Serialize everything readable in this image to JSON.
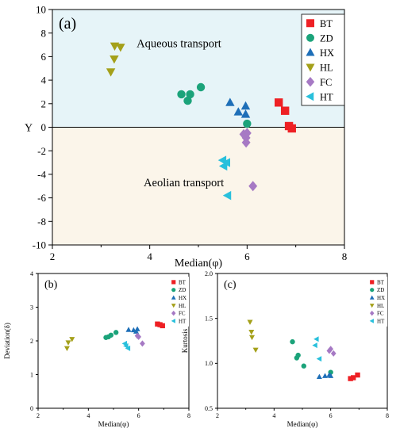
{
  "chart_data": [
    {
      "panel": "(a)",
      "type": "scatter",
      "xlabel": "Median(φ)",
      "ylabel": "Y",
      "xlim": [
        2,
        8
      ],
      "ylim": [
        -10,
        10
      ],
      "xticks": [
        "2",
        "4",
        "6",
        "8"
      ],
      "yticks": [
        "10",
        "8",
        "6",
        "4",
        "2",
        "0",
        "-2",
        "-4",
        "-6",
        "-8",
        "-10"
      ],
      "background_regions": [
        {
          "label": "Aqueous transport",
          "y_range": [
            0,
            10
          ],
          "color": "#e6f4f8",
          "label_at": [
            4.6,
            6.8
          ]
        },
        {
          "label": "Aeolian transport",
          "y_range": [
            -10,
            0
          ],
          "color": "#fbf5ea",
          "label_at": [
            4.7,
            -5.0
          ]
        }
      ],
      "reference_line_y": 0,
      "legend_position": "top-right",
      "series": [
        {
          "name": "BT",
          "marker": "square",
          "color": "#ee2024",
          "points": [
            [
              6.65,
              2.1
            ],
            [
              6.78,
              1.4
            ],
            [
              6.86,
              0.1
            ],
            [
              6.92,
              -0.1
            ]
          ]
        },
        {
          "name": "ZD",
          "marker": "circle",
          "color": "#1ba37a",
          "points": [
            [
              4.65,
              2.8
            ],
            [
              4.78,
              2.25
            ],
            [
              4.83,
              2.8
            ],
            [
              5.05,
              3.4
            ],
            [
              6.0,
              0.3
            ]
          ]
        },
        {
          "name": "HX",
          "marker": "triangle-up",
          "color": "#1e6fb8",
          "points": [
            [
              5.65,
              2.1
            ],
            [
              5.82,
              1.3
            ],
            [
              5.97,
              1.8
            ],
            [
              5.97,
              1.1
            ]
          ]
        },
        {
          "name": "HL",
          "marker": "triangle-down",
          "color": "#a4a01a",
          "points": [
            [
              3.2,
              4.7
            ],
            [
              3.27,
              5.8
            ],
            [
              3.28,
              6.9
            ],
            [
              3.4,
              6.8
            ]
          ]
        },
        {
          "name": "FC",
          "marker": "diamond",
          "color": "#a679c4",
          "points": [
            [
              5.93,
              -0.6
            ],
            [
              5.98,
              -0.9
            ],
            [
              5.98,
              -1.3
            ],
            [
              6.0,
              -0.5
            ],
            [
              6.12,
              -5.0
            ]
          ]
        },
        {
          "name": "HT",
          "marker": "triangle-left",
          "color": "#29c0dc",
          "points": [
            [
              5.5,
              -2.8
            ],
            [
              5.52,
              -3.3
            ],
            [
              5.58,
              -3.0
            ],
            [
              5.6,
              -5.8
            ]
          ]
        }
      ]
    },
    {
      "panel": "(b)",
      "type": "scatter",
      "xlabel": "Median(φ)",
      "ylabel": "Deviation(δ)",
      "xlim": [
        2,
        8
      ],
      "ylim": [
        0,
        4
      ],
      "xticks": [
        "2",
        "4",
        "6",
        "8"
      ],
      "yticks": [
        "0",
        "1",
        "2",
        "3",
        "4"
      ],
      "legend_position": "top-right",
      "series": [
        {
          "name": "BT",
          "marker": "square",
          "color": "#ee2024",
          "points": [
            [
              6.75,
              2.5
            ],
            [
              6.85,
              2.48
            ],
            [
              6.95,
              2.45
            ]
          ]
        },
        {
          "name": "ZD",
          "marker": "circle",
          "color": "#1ba37a",
          "points": [
            [
              4.7,
              2.1
            ],
            [
              4.8,
              2.12
            ],
            [
              4.9,
              2.17
            ],
            [
              5.1,
              2.25
            ]
          ]
        },
        {
          "name": "HX",
          "marker": "triangle-up",
          "color": "#1e6fb8",
          "points": [
            [
              5.6,
              2.33
            ],
            [
              5.8,
              2.32
            ],
            [
              5.9,
              2.28
            ],
            [
              5.95,
              2.35
            ]
          ]
        },
        {
          "name": "HL",
          "marker": "triangle-down",
          "color": "#a4a01a",
          "points": [
            [
              3.15,
              1.78
            ],
            [
              3.2,
              1.95
            ],
            [
              3.35,
              2.05
            ]
          ]
        },
        {
          "name": "FC",
          "marker": "diamond",
          "color": "#a679c4",
          "points": [
            [
              5.95,
              2.15
            ],
            [
              6.0,
              2.12
            ],
            [
              6.15,
              1.92
            ]
          ]
        },
        {
          "name": "HT",
          "marker": "triangle-left",
          "color": "#29c0dc",
          "points": [
            [
              5.45,
              1.92
            ],
            [
              5.5,
              1.85
            ],
            [
              5.58,
              1.78
            ]
          ]
        }
      ]
    },
    {
      "panel": "(c)",
      "type": "scatter",
      "xlabel": "Median(φ)",
      "ylabel": "Kurtosis",
      "xlim": [
        2,
        8
      ],
      "ylim": [
        0.5,
        2.0
      ],
      "xticks": [
        "2",
        "4",
        "6",
        "8"
      ],
      "yticks": [
        "0.5",
        "1.0",
        "1.5",
        "2.0"
      ],
      "legend_position": "top-right",
      "series": [
        {
          "name": "BT",
          "marker": "square",
          "color": "#ee2024",
          "points": [
            [
              6.7,
              0.83
            ],
            [
              6.8,
              0.84
            ],
            [
              6.95,
              0.87
            ]
          ]
        },
        {
          "name": "ZD",
          "marker": "circle",
          "color": "#1ba37a",
          "points": [
            [
              4.65,
              1.24
            ],
            [
              4.8,
              1.06
            ],
            [
              4.85,
              1.09
            ],
            [
              5.05,
              0.97
            ],
            [
              6.0,
              0.9
            ]
          ]
        },
        {
          "name": "HX",
          "marker": "triangle-up",
          "color": "#1e6fb8",
          "points": [
            [
              5.6,
              0.85
            ],
            [
              5.8,
              0.86
            ],
            [
              5.95,
              0.87
            ],
            [
              6.0,
              0.86
            ]
          ]
        },
        {
          "name": "HL",
          "marker": "triangle-down",
          "color": "#a4a01a",
          "points": [
            [
              3.15,
              1.46
            ],
            [
              3.2,
              1.35
            ],
            [
              3.22,
              1.29
            ],
            [
              3.35,
              1.15
            ]
          ]
        },
        {
          "name": "FC",
          "marker": "diamond",
          "color": "#a679c4",
          "points": [
            [
              5.95,
              1.14
            ],
            [
              6.0,
              1.16
            ],
            [
              6.1,
              1.11
            ]
          ]
        },
        {
          "name": "HT",
          "marker": "triangle-left",
          "color": "#29c0dc",
          "points": [
            [
              5.45,
              1.2
            ],
            [
              5.5,
              1.27
            ],
            [
              5.6,
              1.05
            ]
          ]
        }
      ]
    }
  ]
}
